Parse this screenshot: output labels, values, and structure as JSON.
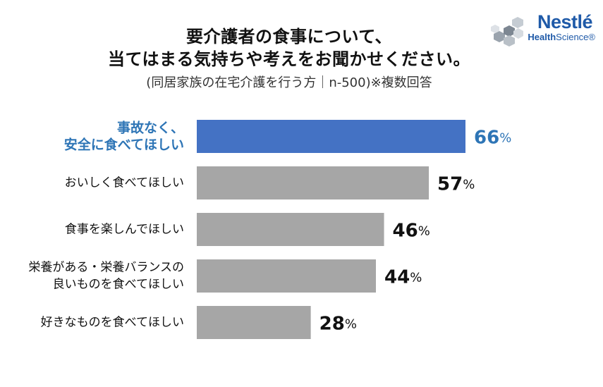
{
  "title_line1": "要介護者の食事について、",
  "title_line2": "当てはまる気持ちや考えをお聞かせください。",
  "subtitle": "(同居家族の在宅介護を行う方｜n-500)※複数回答",
  "logo": {
    "brand": "Nestlé",
    "line2_bold": "Health",
    "line2": "Science"
  },
  "chart_data": {
    "type": "bar",
    "orientation": "horizontal",
    "unit": "%",
    "categories": [
      [
        "事故なく、",
        "安全に食べてほしい"
      ],
      [
        "おいしく食べてほしい"
      ],
      [
        "食事を楽しんでほしい"
      ],
      [
        "栄養がある・栄養バランスの",
        "良いものを食べてほしい"
      ],
      [
        "好きなものを食べてほしい"
      ]
    ],
    "values": [
      66,
      57,
      46,
      44,
      28
    ],
    "highlight_index": 0,
    "xlim": [
      0,
      66
    ],
    "grid": false,
    "colors": {
      "highlight": "#4472c4",
      "default": "#a6a6a6",
      "highlight_text": "#2e75b6",
      "text": "#111111"
    }
  }
}
